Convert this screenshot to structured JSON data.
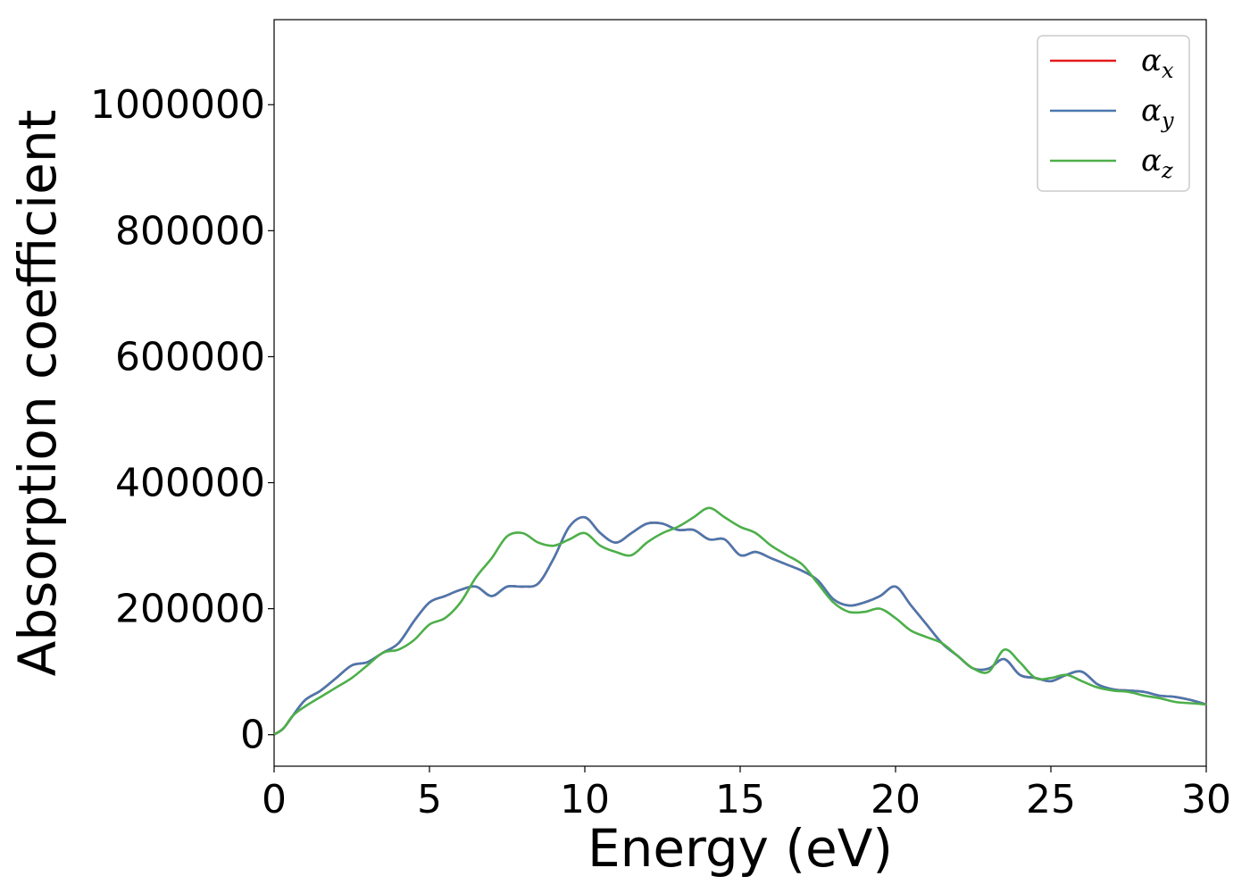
{
  "chart_data": {
    "type": "line",
    "title": "",
    "xlabel": "Energy (eV)",
    "ylabel": "Absorption coefficient",
    "xlim": [
      0,
      30
    ],
    "ylim": [
      -50000,
      1135000
    ],
    "xticks": [
      0,
      5,
      10,
      15,
      20,
      25,
      30
    ],
    "yticks": [
      0,
      200000,
      400000,
      600000,
      800000,
      1000000
    ],
    "grid": false,
    "legend_position": "top-right",
    "series": [
      {
        "name_symbol": "α",
        "name_subscript": "x",
        "color": "#e41a1c",
        "x": [
          0,
          0.3,
          0.6,
          1,
          1.5,
          2,
          2.5,
          3,
          3.5,
          4,
          4.5,
          5,
          5.5,
          6,
          6.5,
          7,
          7.5,
          8,
          8.5,
          9,
          9.5,
          10,
          10.5,
          11,
          11.5,
          12,
          12.5,
          13,
          13.5,
          14,
          14.5,
          15,
          15.5,
          16,
          16.5,
          17,
          17.5,
          18,
          18.5,
          19,
          19.5,
          20,
          20.5,
          21,
          21.5,
          22,
          22.5,
          23,
          23.5,
          24,
          24.5,
          25,
          25.5,
          26,
          26.5,
          27,
          27.5,
          28,
          28.5,
          29,
          29.5,
          30
        ],
        "y": [
          0,
          10000,
          30000,
          55000,
          70000,
          90000,
          110000,
          115000,
          130000,
          145000,
          180000,
          210000,
          220000,
          230000,
          235000,
          220000,
          235000,
          235000,
          240000,
          280000,
          330000,
          345000,
          320000,
          305000,
          320000,
          335000,
          335000,
          325000,
          325000,
          310000,
          310000,
          285000,
          290000,
          280000,
          270000,
          260000,
          245000,
          215000,
          205000,
          210000,
          220000,
          235000,
          205000,
          175000,
          145000,
          125000,
          105000,
          105000,
          120000,
          95000,
          90000,
          85000,
          95000,
          100000,
          80000,
          72000,
          70000,
          68000,
          62000,
          60000,
          55000,
          48000
        ]
      },
      {
        "name_symbol": "α",
        "name_subscript": "y",
        "color": "#4a78ae",
        "x": [
          0,
          0.3,
          0.6,
          1,
          1.5,
          2,
          2.5,
          3,
          3.5,
          4,
          4.5,
          5,
          5.5,
          6,
          6.5,
          7,
          7.5,
          8,
          8.5,
          9,
          9.5,
          10,
          10.5,
          11,
          11.5,
          12,
          12.5,
          13,
          13.5,
          14,
          14.5,
          15,
          15.5,
          16,
          16.5,
          17,
          17.5,
          18,
          18.5,
          19,
          19.5,
          20,
          20.5,
          21,
          21.5,
          22,
          22.5,
          23,
          23.5,
          24,
          24.5,
          25,
          25.5,
          26,
          26.5,
          27,
          27.5,
          28,
          28.5,
          29,
          29.5,
          30
        ],
        "y": [
          0,
          10000,
          30000,
          55000,
          70000,
          90000,
          110000,
          115000,
          130000,
          145000,
          180000,
          210000,
          220000,
          230000,
          235000,
          220000,
          235000,
          235000,
          240000,
          280000,
          330000,
          345000,
          320000,
          305000,
          320000,
          335000,
          335000,
          325000,
          325000,
          310000,
          310000,
          285000,
          290000,
          280000,
          270000,
          260000,
          245000,
          215000,
          205000,
          210000,
          220000,
          235000,
          205000,
          175000,
          145000,
          125000,
          105000,
          105000,
          120000,
          95000,
          90000,
          85000,
          95000,
          100000,
          80000,
          72000,
          70000,
          68000,
          62000,
          60000,
          55000,
          48000
        ]
      },
      {
        "name_symbol": "α",
        "name_subscript": "z",
        "color": "#4daf4a",
        "x": [
          0,
          0.3,
          0.6,
          1,
          1.5,
          2,
          2.5,
          3,
          3.5,
          4,
          4.5,
          5,
          5.5,
          6,
          6.5,
          7,
          7.5,
          8,
          8.5,
          9,
          9.5,
          10,
          10.5,
          11,
          11.5,
          12,
          12.5,
          13,
          13.5,
          14,
          14.5,
          15,
          15.5,
          16,
          16.5,
          17,
          17.5,
          18,
          18.5,
          19,
          19.5,
          20,
          20.5,
          21,
          21.5,
          22,
          22.5,
          23,
          23.5,
          24,
          24.5,
          25,
          25.5,
          26,
          26.5,
          27,
          27.5,
          28,
          28.5,
          29,
          29.5,
          30
        ],
        "y": [
          0,
          10000,
          30000,
          45000,
          60000,
          75000,
          90000,
          110000,
          130000,
          135000,
          150000,
          175000,
          185000,
          210000,
          250000,
          280000,
          315000,
          320000,
          305000,
          300000,
          310000,
          320000,
          300000,
          290000,
          285000,
          305000,
          320000,
          330000,
          345000,
          360000,
          345000,
          330000,
          320000,
          300000,
          285000,
          270000,
          240000,
          210000,
          195000,
          195000,
          200000,
          185000,
          165000,
          155000,
          145000,
          125000,
          105000,
          100000,
          135000,
          115000,
          90000,
          90000,
          95000,
          85000,
          75000,
          70000,
          68000,
          62000,
          58000,
          52000,
          50000,
          48000
        ]
      }
    ]
  }
}
